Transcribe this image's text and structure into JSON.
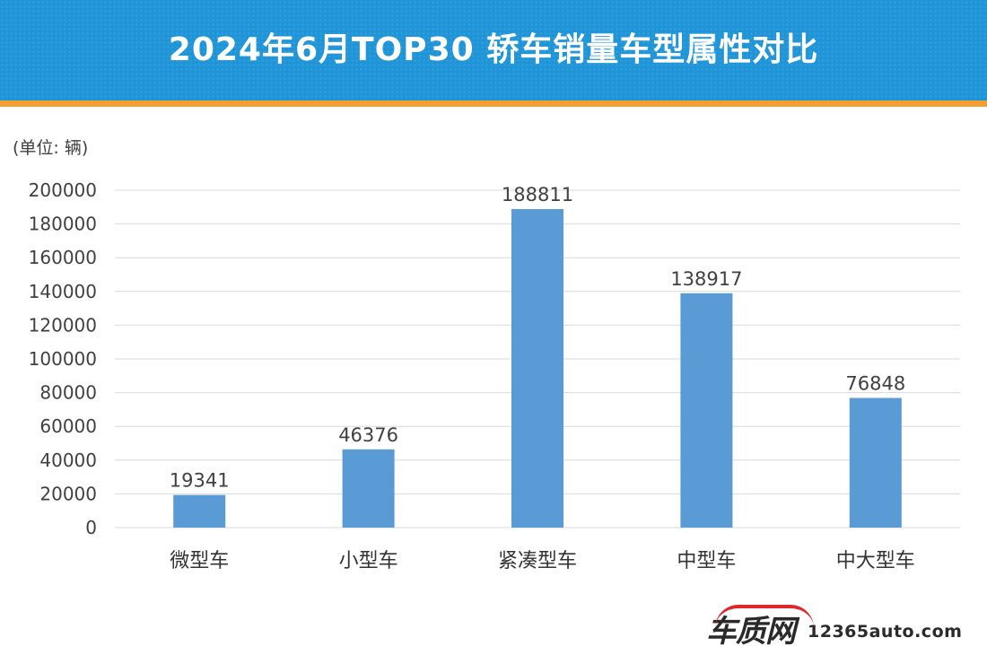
{
  "header": {
    "title": "2024年6月TOP30 轿车销量车型属性对比"
  },
  "unit_label": "(单位: 辆)",
  "footer": {
    "logo_text": "车质网",
    "url": "12365auto.com"
  },
  "colors": {
    "header_bg": "#1f95d8",
    "header_stripe": "#f0a030",
    "bar": "#5b9bd5",
    "grid": "#d9d9d9",
    "logo_accent": "#e0262b"
  },
  "chart_data": {
    "type": "bar",
    "title": "2024年6月TOP30 轿车销量车型属性对比",
    "xlabel": "",
    "ylabel": "(单位: 辆)",
    "categories": [
      "微型车",
      "小型车",
      "紧凑型车",
      "中型车",
      "中大型车"
    ],
    "values": [
      19341,
      46376,
      188811,
      138917,
      76848
    ],
    "data_labels": [
      "19341",
      "46376",
      "188811",
      "138917",
      "76848"
    ],
    "ylim": [
      0,
      200000
    ],
    "yticks": [
      0,
      20000,
      40000,
      60000,
      80000,
      100000,
      120000,
      140000,
      160000,
      180000,
      200000
    ],
    "grid": true,
    "legend": "none"
  }
}
